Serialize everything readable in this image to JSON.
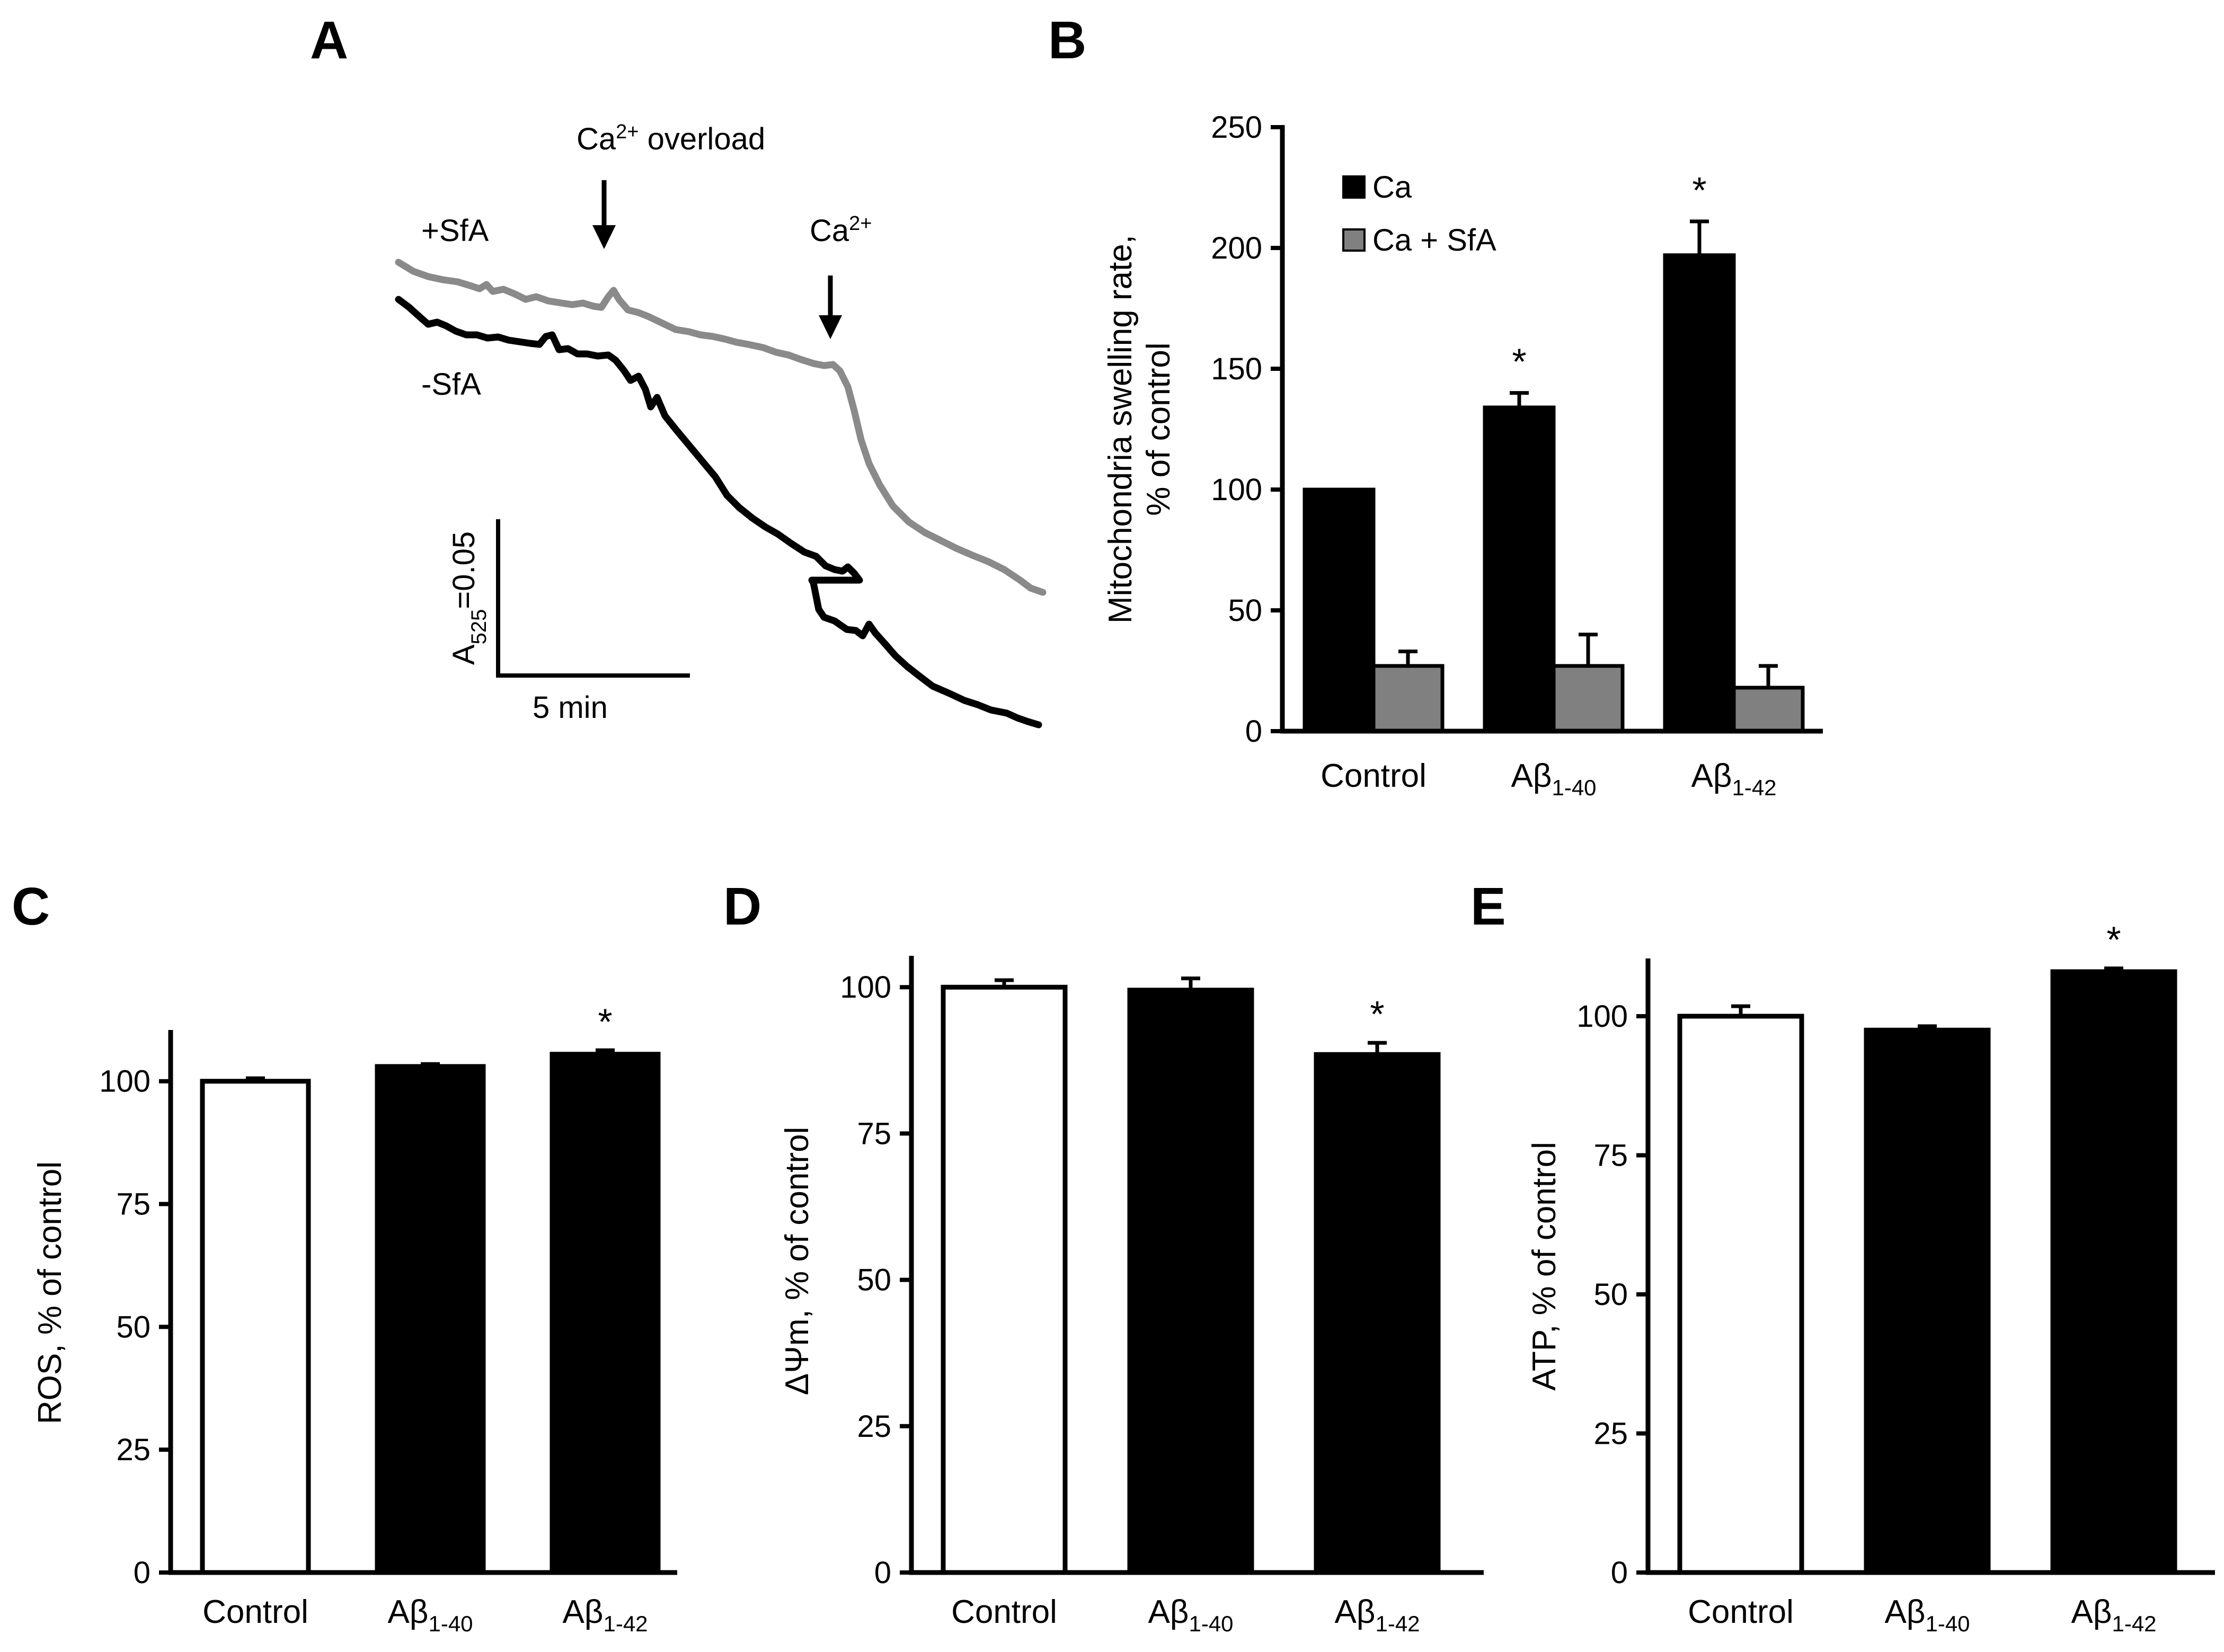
{
  "panels": {
    "A": {
      "label": "A"
    },
    "B": {
      "label": "B"
    },
    "C": {
      "label": "C"
    },
    "D": {
      "label": "D"
    },
    "E": {
      "label": "E"
    }
  },
  "trace": {
    "label_plus": "+SfA",
    "label_minus": "-SfA",
    "arrow1_text": "Ca",
    "arrow1_sup": "2+",
    "arrow1_suffix": " overload",
    "arrow2_text": "Ca",
    "arrow2_sup": "2+",
    "scale_y_main": "A",
    "scale_y_sub": "525",
    "scale_y_suffix": "=0.05",
    "scale_x": "5 min",
    "colors": {
      "plus": "#8a8a8a",
      "minus": "#000000"
    }
  },
  "chart_data": [
    {
      "id": "B",
      "type": "bar",
      "categories": [
        "Control",
        "Aβ1-40",
        "Aβ1-42"
      ],
      "category_parts": [
        [
          "Control",
          ""
        ],
        [
          "Aβ",
          "1-40"
        ],
        [
          "Aβ",
          "1-42"
        ]
      ],
      "series": [
        {
          "name": "Ca",
          "values": [
            100,
            134,
            197
          ],
          "errors": [
            0,
            6,
            14
          ],
          "color": "#000000"
        },
        {
          "name": "Ca + SfA",
          "values": [
            27,
            27,
            18
          ],
          "errors": [
            6,
            13,
            9
          ],
          "color": "#808080"
        }
      ],
      "significance": [
        [
          "",
          "*",
          "*"
        ],
        [
          "",
          "",
          ""
        ]
      ],
      "ylabel_lines": [
        "Mitochondria swelling rate,",
        "% of control"
      ],
      "ylim": [
        0,
        250
      ],
      "yticks": [
        0,
        50,
        100,
        150,
        200,
        250
      ],
      "legend": "top-left"
    },
    {
      "id": "C",
      "type": "bar",
      "categories": [
        "Control",
        "Aβ1-40",
        "Aβ1-42"
      ],
      "category_parts": [
        [
          "Control",
          ""
        ],
        [
          "Aβ",
          "1-40"
        ],
        [
          "Aβ",
          "1-42"
        ]
      ],
      "values": [
        100,
        103,
        105.5
      ],
      "errors": [
        0.6,
        0.5,
        0.8
      ],
      "fills": [
        "#ffffff",
        "#000000",
        "#000000"
      ],
      "significance": [
        "",
        "",
        "*"
      ],
      "ylabel": "ROS, % of control",
      "ylim": [
        0,
        110
      ],
      "yticks": [
        0,
        25,
        50,
        75,
        100
      ]
    },
    {
      "id": "D",
      "type": "bar",
      "categories": [
        "Control",
        "Aβ1-40",
        "Aβ1-42"
      ],
      "category_parts": [
        [
          "Control",
          ""
        ],
        [
          "Aβ",
          "1-40"
        ],
        [
          "Aβ",
          "1-42"
        ]
      ],
      "values": [
        100,
        99.5,
        88.5
      ],
      "errors": [
        1.2,
        2,
        2
      ],
      "fills": [
        "#ffffff",
        "#000000",
        "#000000"
      ],
      "significance": [
        "",
        "",
        "*"
      ],
      "ylabel": "ΔΨm, % of control",
      "ylim": [
        0,
        105
      ],
      "yticks": [
        0,
        25,
        50,
        75,
        100
      ]
    },
    {
      "id": "E",
      "type": "bar",
      "categories": [
        "Control",
        "Aβ1-40",
        "Aβ1-42"
      ],
      "category_parts": [
        [
          "Control",
          ""
        ],
        [
          "Aβ",
          "1-40"
        ],
        [
          "Aβ",
          "1-42"
        ]
      ],
      "values": [
        100,
        97.5,
        108
      ],
      "errors": [
        1.8,
        0.7,
        0.6
      ],
      "fills": [
        "#ffffff",
        "#000000",
        "#000000"
      ],
      "significance": [
        "",
        "",
        "*"
      ],
      "ylabel": "ATP, % of control",
      "ylim": [
        0,
        110
      ],
      "yticks": [
        0,
        25,
        50,
        75,
        100
      ]
    }
  ]
}
